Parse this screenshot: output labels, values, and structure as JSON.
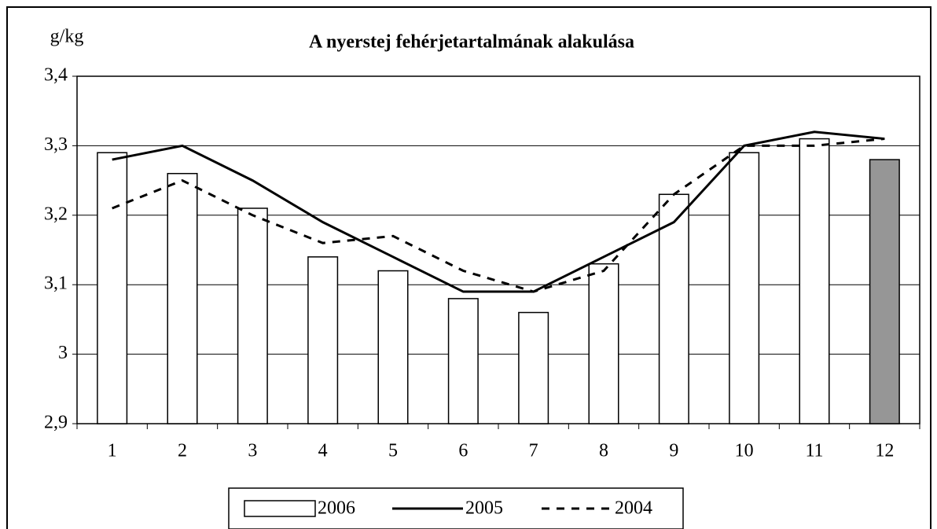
{
  "chart_data": {
    "type": "bar",
    "title": "A nyerstej fehérjetartalmának alakulása",
    "y_label": "g/kg",
    "categories": [
      "1",
      "2",
      "3",
      "4",
      "5",
      "6",
      "7",
      "8",
      "9",
      "10",
      "11",
      "12"
    ],
    "series": [
      {
        "name": "2006",
        "type": "bar",
        "color": "#ffffff",
        "colors": [
          "#ffffff",
          "#ffffff",
          "#ffffff",
          "#ffffff",
          "#ffffff",
          "#ffffff",
          "#ffffff",
          "#ffffff",
          "#ffffff",
          "#ffffff",
          "#ffffff",
          "#969696"
        ],
        "values": [
          3.29,
          3.26,
          3.21,
          3.14,
          3.12,
          3.08,
          3.06,
          3.13,
          3.23,
          3.29,
          3.31,
          3.28
        ]
      },
      {
        "name": "2005",
        "type": "line",
        "color": "#000000",
        "dashed": false,
        "values": [
          3.28,
          3.3,
          3.25,
          3.19,
          3.14,
          3.09,
          3.09,
          3.14,
          3.19,
          3.3,
          3.32,
          3.31
        ]
      },
      {
        "name": "2004",
        "type": "line",
        "color": "#000000",
        "dashed": true,
        "values": [
          3.21,
          3.25,
          3.2,
          3.16,
          3.17,
          3.12,
          3.09,
          3.12,
          3.23,
          3.3,
          3.3,
          3.31
        ]
      }
    ],
    "ylim": [
      2.9,
      3.4
    ],
    "yticks": [
      {
        "value": 2.9,
        "label": "2,9"
      },
      3,
      {
        "value": 3.1,
        "label": "3,1"
      },
      {
        "value": 3.2,
        "label": "3,2"
      },
      {
        "value": 3.3,
        "label": "3,3"
      },
      {
        "value": 3.4,
        "label": "3,4"
      }
    ],
    "grid": true,
    "legend": "bottom"
  }
}
